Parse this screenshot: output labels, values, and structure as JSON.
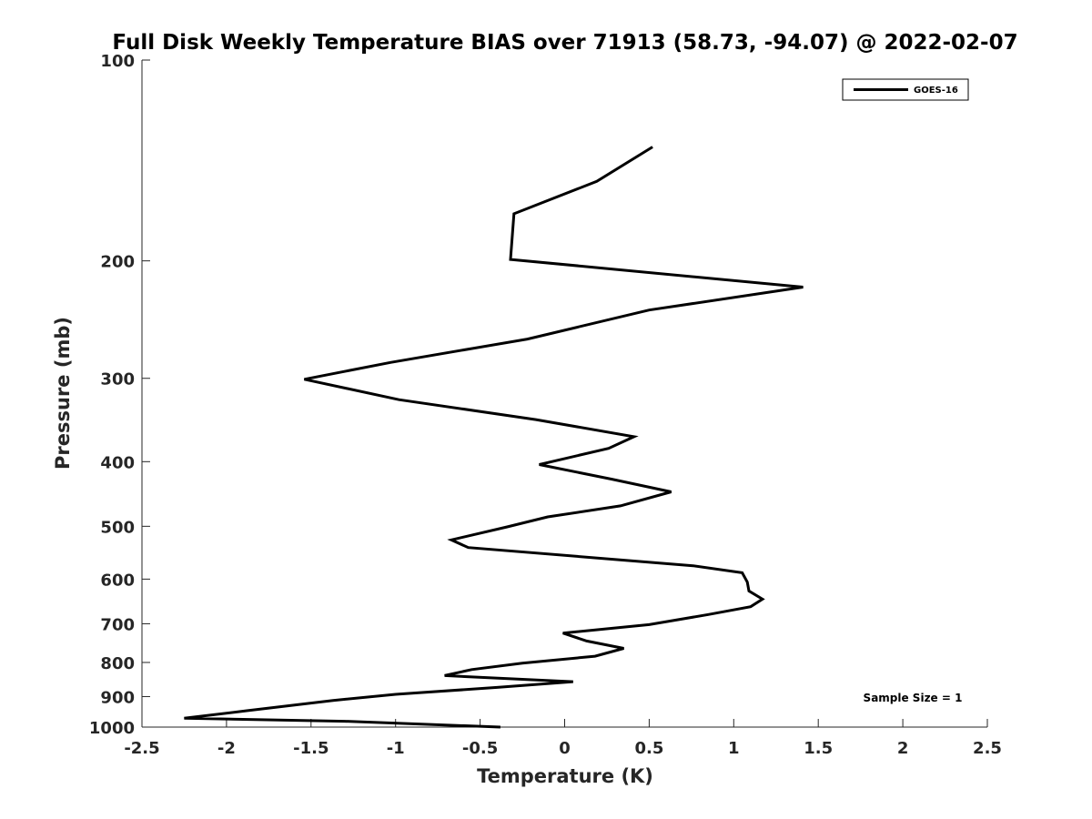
{
  "chart_data": {
    "type": "line",
    "title": "Full Disk Weekly Temperature BIAS over 71913 (58.73, -94.07) @ 2022-02-07",
    "xlabel": "Temperature (K)",
    "ylabel": "Pressure (mb)",
    "xlim": [
      -2.5,
      2.5
    ],
    "ylim": [
      100,
      1000
    ],
    "y_scale": "log",
    "y_reversed": true,
    "x_ticks": [
      "-2.5",
      "-2",
      "-1.5",
      "-1",
      "-0.5",
      "0",
      "0.5",
      "1",
      "1.5",
      "2",
      "2.5"
    ],
    "y_ticks": [
      "100",
      "200",
      "300",
      "400",
      "500",
      "600",
      "700",
      "800",
      "900",
      "1000"
    ],
    "grid": false,
    "legend_position": "top-right",
    "annotation": "Sample Size = 1",
    "series": [
      {
        "name": "GOES-16",
        "color": "#000000",
        "points": [
          {
            "x": 0.52,
            "y": 135
          },
          {
            "x": 0.19,
            "y": 152
          },
          {
            "x": -0.3,
            "y": 170
          },
          {
            "x": -0.32,
            "y": 199
          },
          {
            "x": 1.41,
            "y": 219
          },
          {
            "x": 0.5,
            "y": 237
          },
          {
            "x": -0.22,
            "y": 262
          },
          {
            "x": -1.03,
            "y": 284
          },
          {
            "x": -1.54,
            "y": 301
          },
          {
            "x": -0.98,
            "y": 323
          },
          {
            "x": -0.17,
            "y": 346
          },
          {
            "x": 0.41,
            "y": 367
          },
          {
            "x": 0.26,
            "y": 382
          },
          {
            "x": -0.15,
            "y": 404
          },
          {
            "x": 0.28,
            "y": 425
          },
          {
            "x": 0.63,
            "y": 444
          },
          {
            "x": 0.33,
            "y": 466
          },
          {
            "x": -0.1,
            "y": 484
          },
          {
            "x": -0.34,
            "y": 501
          },
          {
            "x": -0.67,
            "y": 524
          },
          {
            "x": -0.57,
            "y": 538
          },
          {
            "x": 0.76,
            "y": 573
          },
          {
            "x": 1.05,
            "y": 587
          },
          {
            "x": 1.08,
            "y": 606
          },
          {
            "x": 1.09,
            "y": 625
          },
          {
            "x": 1.17,
            "y": 643
          },
          {
            "x": 1.1,
            "y": 660
          },
          {
            "x": 0.85,
            "y": 678
          },
          {
            "x": 0.5,
            "y": 702
          },
          {
            "x": -0.01,
            "y": 723
          },
          {
            "x": 0.13,
            "y": 743
          },
          {
            "x": 0.35,
            "y": 762
          },
          {
            "x": 0.18,
            "y": 783
          },
          {
            "x": -0.25,
            "y": 802
          },
          {
            "x": -0.55,
            "y": 820
          },
          {
            "x": -0.71,
            "y": 837
          },
          {
            "x": 0.05,
            "y": 855
          },
          {
            "x": -0.4,
            "y": 872
          },
          {
            "x": -1.0,
            "y": 893
          },
          {
            "x": -1.37,
            "y": 912
          },
          {
            "x": -1.88,
            "y": 945
          },
          {
            "x": -2.25,
            "y": 970
          },
          {
            "x": -1.3,
            "y": 980
          },
          {
            "x": -0.38,
            "y": 1000
          }
        ]
      }
    ]
  }
}
